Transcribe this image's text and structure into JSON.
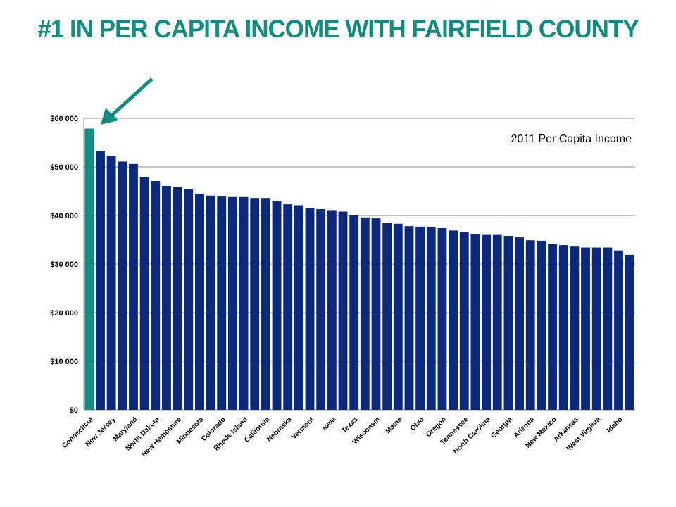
{
  "slide": {
    "title": "#1 IN PER CAPITA INCOME WITH FAIRFIELD COUNTY"
  },
  "colors": {
    "title": "#108c80",
    "highlight_bar": "#108c80",
    "bar": "#0b2a7d",
    "arrow": "#108c80",
    "gridline": "#8c8c8c"
  },
  "chart_data": {
    "type": "bar",
    "title": "",
    "annotation": "2011 Per Capita Income",
    "xlabel": "",
    "ylabel": "",
    "ylim": [
      0,
      60000
    ],
    "grid": true,
    "yticks": [
      "$0",
      "$10 000",
      "$20 000",
      "$30 000",
      "$40 000",
      "$50 000",
      "$60 000"
    ],
    "categories": [
      "Connecticut",
      "",
      "New Jersey",
      "",
      "Maryland",
      "",
      "North Dakota",
      "",
      "New Hampshire",
      "",
      "Minnesota",
      "",
      "Colorado",
      "",
      "Rhode Island",
      "",
      "California",
      "",
      "Nebraska",
      "",
      "Vermont",
      "",
      "Iowa",
      "",
      "Texas",
      "",
      "Wisconsin",
      "",
      "Maine",
      "",
      "Ohio",
      "",
      "Oregon",
      "",
      "Tennessee",
      "",
      "North Carolina",
      "",
      "Georgia",
      "",
      "Arizona",
      "",
      "New Mexico",
      "",
      "Arkansas",
      "",
      "West Virginia",
      "",
      "Idaho",
      ""
    ],
    "values": [
      57900,
      53300,
      52300,
      51100,
      50600,
      47900,
      47100,
      46100,
      45800,
      45500,
      44500,
      44100,
      43900,
      43800,
      43800,
      43600,
      43600,
      42900,
      42300,
      42100,
      41500,
      41300,
      41100,
      40800,
      40000,
      39600,
      39400,
      38500,
      38300,
      37800,
      37700,
      37600,
      37400,
      36900,
      36600,
      36100,
      36000,
      36000,
      35800,
      35500,
      34900,
      34800,
      34100,
      33900,
      33600,
      33400,
      33400,
      33400,
      32800,
      31900
    ],
    "highlight_index": 0
  }
}
